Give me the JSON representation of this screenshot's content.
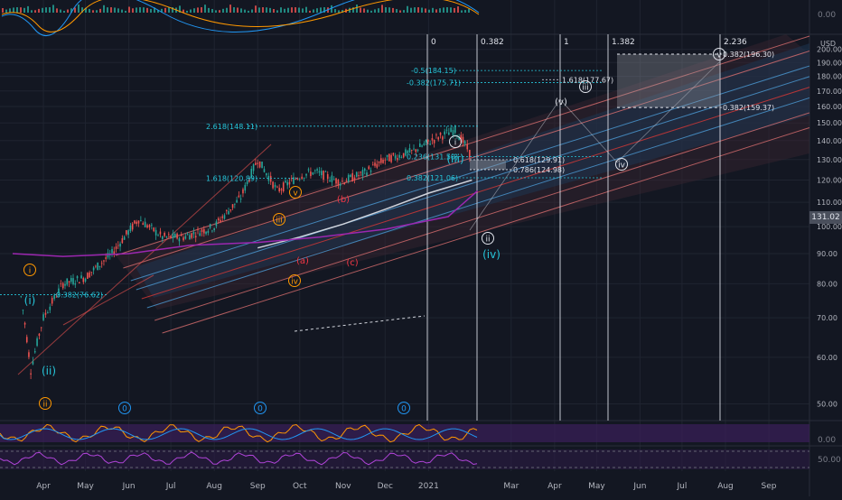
{
  "app": {
    "currency": "USD",
    "last_price": "131.02",
    "top_pane_zero": "0.00"
  },
  "colors": {
    "background": "#131722",
    "grid": "#1f2430",
    "fib_text": "#26c6da",
    "orange_label": "#ff9800",
    "white_label": "#e0e3eb",
    "red_label": "#f23645",
    "ma_white": "#d1d4dc",
    "ma_purple": "#9c27b0",
    "channel_pink": "#e57373",
    "channel_blue": "#4fa3e0",
    "candle_up": "#26a69a",
    "candle_down": "#ef5350"
  },
  "chart_data": {
    "type": "line",
    "title": "",
    "xlabel": "",
    "ylabel": "",
    "ylim": [
      45,
      202
    ],
    "log_scale": true,
    "grid": true,
    "x_tick_labels": [
      "Apr",
      "May",
      "Jun",
      "Jul",
      "Aug",
      "Sep",
      "Oct",
      "Nov",
      "Dec",
      "2021",
      "Mar",
      "Apr",
      "May",
      "Jun",
      "Jul",
      "Aug",
      "Sep"
    ],
    "y_tick_values": [
      50,
      60,
      70,
      80,
      90,
      100,
      110,
      120,
      130,
      140,
      150,
      160,
      170,
      180,
      190,
      200
    ],
    "y_tick_labels": [
      "50.00",
      "60.00",
      "70.00",
      "80.00",
      "90.00",
      "100.00",
      "110.00",
      "120.00",
      "130.00",
      "140.00",
      "150.00",
      "160.00",
      "170.00",
      "180.00",
      "190.00",
      "200.00"
    ],
    "price_series": {
      "name": "",
      "x": [
        "2020-03-16",
        "2020-03-23",
        "2020-04-01",
        "2020-04-15",
        "2020-05-01",
        "2020-05-20",
        "2020-06-08",
        "2020-06-25",
        "2020-07-10",
        "2020-08-01",
        "2020-08-20",
        "2020-09-01",
        "2020-09-15",
        "2020-10-01",
        "2020-10-12",
        "2020-10-30",
        "2020-11-15",
        "2020-12-01",
        "2020-12-20",
        "2021-01-08",
        "2021-01-20",
        "2021-01-27",
        "2021-02-01"
      ],
      "y": [
        76,
        57,
        70,
        80,
        82,
        90,
        103,
        96,
        96,
        100,
        112,
        130,
        115,
        122,
        124,
        119,
        123,
        130,
        134,
        142,
        146,
        138,
        131
      ]
    },
    "moving_averages": [
      {
        "name": "",
        "color": "#d1d4dc",
        "x": [
          "2020-09-01",
          "2020-10-01",
          "2020-11-01",
          "2020-12-01",
          "2021-01-01",
          "2021-02-01"
        ],
        "y": [
          92,
          96,
          101,
          107,
          114,
          120
        ]
      },
      {
        "name": "",
        "color": "#9c27b0",
        "x": [
          "2020-03-10",
          "2020-04-15",
          "2020-06-01",
          "2020-07-15",
          "2020-09-01",
          "2020-10-15",
          "2020-12-01",
          "2021-01-15",
          "2021-02-05"
        ],
        "y": [
          90,
          89,
          90,
          93,
          94,
          96,
          99,
          104,
          115
        ]
      }
    ],
    "fib_levels": [
      {
        "label": "2.618(148.11)",
        "value": 148.11
      },
      {
        "label": "1.618(120.89)",
        "value": 120.89
      },
      {
        "label": "0.382(76.62)",
        "value": 76.62
      },
      {
        "label": "0.236(131.50)",
        "value": 131.5
      },
      {
        "label": "0.382(121.06)",
        "value": 121.06
      },
      {
        "label": "-0.5(184.15)",
        "value": 184.15
      },
      {
        "label": "-0.382(175.71)",
        "value": 175.71
      },
      {
        "label": "0.618(129.91)",
        "value": 129.91
      },
      {
        "label": "0.786(124.98)",
        "value": 124.98
      },
      {
        "label": "1.618(177.67)",
        "value": 177.67
      },
      {
        "label": "0.382(196.30)",
        "value": 196.3
      },
      {
        "label": "0.382(159.37)",
        "value": 159.37
      }
    ],
    "time_fib_labels": [
      "0",
      "0.382",
      "1",
      "1.382",
      "2.236"
    ],
    "wave_labels": [
      "i",
      "ii",
      "iii",
      "iv",
      "v",
      "(i)",
      "(ii)",
      "(iii)",
      "(iv)",
      "(v)",
      "(a)",
      "(b)",
      "(c)",
      "0"
    ],
    "oscillator_labels": [
      "0.00",
      "50.00"
    ]
  }
}
